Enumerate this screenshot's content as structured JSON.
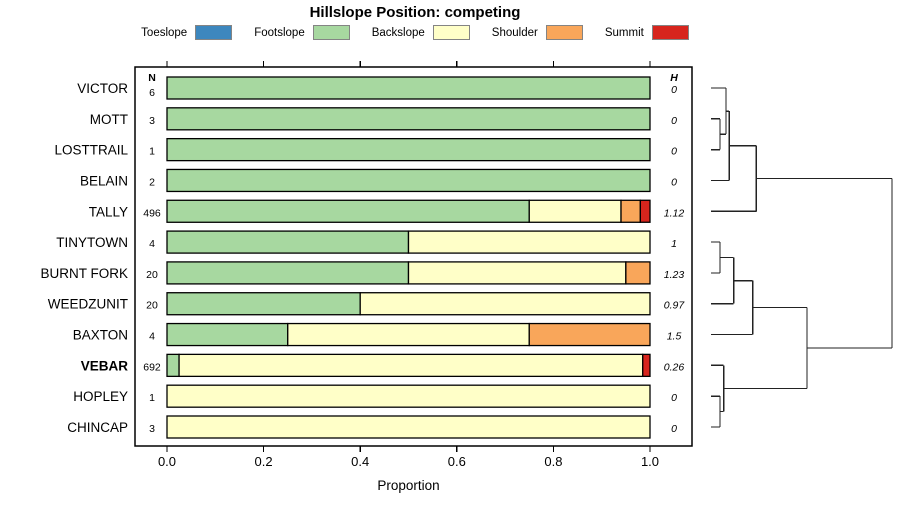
{
  "title": "Hillslope Position: competing",
  "legend": [
    {
      "label": "Toeslope",
      "color": "#3d87be"
    },
    {
      "label": "Footslope",
      "color": "#a7d8a0"
    },
    {
      "label": "Backslope",
      "color": "#ffffc8"
    },
    {
      "label": "Shoulder",
      "color": "#f9a65a"
    },
    {
      "label": "Summit",
      "color": "#d7251d"
    }
  ],
  "chart_data": {
    "type": "bar",
    "stacked": true,
    "orientation": "horizontal",
    "xlabel": "Proportion",
    "xlim": [
      0,
      1
    ],
    "xticks": [
      0,
      0.2,
      0.4,
      0.6,
      0.8,
      1.0
    ],
    "xtick_labels": [
      "0.0",
      "0.2",
      "0.4",
      "0.6",
      "0.8",
      "1.0"
    ],
    "n_column_header": "N",
    "h_column_header": "H",
    "categories": [
      {
        "label": "VICTOR",
        "n": "6",
        "h": "0",
        "bold": false
      },
      {
        "label": "MOTT",
        "n": "3",
        "h": "0",
        "bold": false
      },
      {
        "label": "LOSTTRAIL",
        "n": "1",
        "h": "0",
        "bold": false
      },
      {
        "label": "BELAIN",
        "n": "2",
        "h": "0",
        "bold": false
      },
      {
        "label": "TALLY",
        "n": "496",
        "h": "1.12",
        "bold": false
      },
      {
        "label": "TINYTOWN",
        "n": "4",
        "h": "1",
        "bold": false
      },
      {
        "label": "BURNT FORK",
        "n": "20",
        "h": "1.23",
        "bold": false
      },
      {
        "label": "WEEDZUNIT",
        "n": "20",
        "h": "0.97",
        "bold": false
      },
      {
        "label": "BAXTON",
        "n": "4",
        "h": "1.5",
        "bold": false
      },
      {
        "label": "VEBAR",
        "n": "692",
        "h": "0.26",
        "bold": true
      },
      {
        "label": "HOPLEY",
        "n": "1",
        "h": "0",
        "bold": false
      },
      {
        "label": "CHINCAP",
        "n": "3",
        "h": "0",
        "bold": false
      }
    ],
    "series": [
      {
        "name": "Toeslope",
        "color": "#3d87be",
        "values": [
          0,
          0,
          0,
          0,
          0,
          0,
          0,
          0,
          0,
          0,
          0,
          0
        ]
      },
      {
        "name": "Footslope",
        "color": "#a7d8a0",
        "values": [
          1,
          1,
          1,
          1,
          0.75,
          0.5,
          0.5,
          0.4,
          0.25,
          0.025,
          0,
          0
        ]
      },
      {
        "name": "Backslope",
        "color": "#ffffc8",
        "values": [
          0,
          0,
          0,
          0,
          0.19,
          0.5,
          0.45,
          0.6,
          0.5,
          0.96,
          1,
          1
        ]
      },
      {
        "name": "Shoulder",
        "color": "#f9a65a",
        "values": [
          0,
          0,
          0,
          0,
          0.04,
          0,
          0.05,
          0,
          0.25,
          0,
          0,
          0
        ]
      },
      {
        "name": "Summit",
        "color": "#d7251d",
        "values": [
          0,
          0,
          0,
          0,
          0.02,
          0,
          0,
          0,
          0,
          0.015,
          0,
          0
        ]
      }
    ]
  },
  "dendrogram": {
    "h": 1,
    "children": [
      {
        "h": 0.25,
        "children": [
          {
            "h": 0.1,
            "children": [
              {
                "h": 0.083,
                "children": [
                  {
                    "leaf": "VICTOR"
                  },
                  {
                    "h": 0.05,
                    "children": [
                      {
                        "leaf": "MOTT"
                      },
                      {
                        "leaf": "LOSTTRAIL"
                      }
                    ]
                  }
                ]
              },
              {
                "leaf": "BELAIN"
              }
            ]
          },
          {
            "leaf": "TALLY"
          }
        ]
      },
      {
        "h": 0.53,
        "children": [
          {
            "h": 0.23,
            "children": [
              {
                "h": 0.125,
                "children": [
                  {
                    "h": 0.05,
                    "children": [
                      {
                        "leaf": "TINYTOWN"
                      },
                      {
                        "leaf": "BURNT FORK"
                      }
                    ]
                  },
                  {
                    "leaf": "WEEDZUNIT"
                  }
                ]
              },
              {
                "leaf": "BAXTON"
              }
            ]
          },
          {
            "h": 0.07,
            "children": [
              {
                "leaf": "VEBAR"
              },
              {
                "h": 0.05,
                "children": [
                  {
                    "leaf": "HOPLEY"
                  },
                  {
                    "leaf": "CHINCAP"
                  }
                ]
              }
            ]
          }
        ]
      }
    ]
  }
}
